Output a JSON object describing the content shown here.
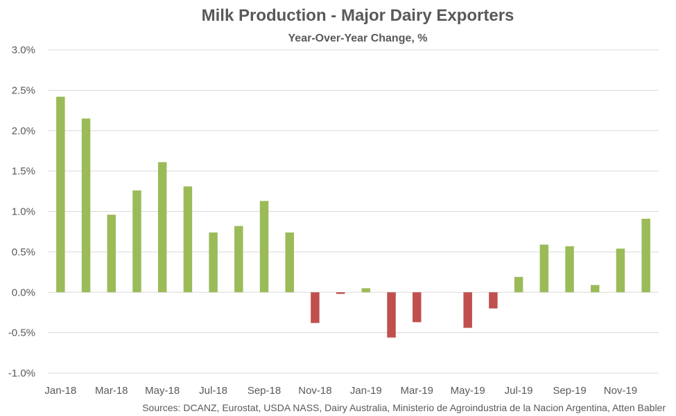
{
  "chart_data": {
    "type": "bar",
    "title": "Milk Production - Major Dairy Exporters",
    "subtitle": "Year-Over-Year Change, %",
    "source": "Sources: DCANZ, Eurostat, USDA NASS, Dairy Australia, Ministerio de Agroindustria de la Nacion Argentina, Atten Babler",
    "categories": [
      "Jan-18",
      "Feb-18",
      "Mar-18",
      "Apr-18",
      "May-18",
      "Jun-18",
      "Jul-18",
      "Aug-18",
      "Sep-18",
      "Oct-18",
      "Nov-18",
      "Dec-18",
      "Jan-19",
      "Feb-19",
      "Mar-19",
      "Apr-19",
      "May-19",
      "Jun-19",
      "Jul-19",
      "Aug-19",
      "Sep-19",
      "Oct-19",
      "Nov-19",
      "Dec-19"
    ],
    "x_tick_labels": [
      "Jan-18",
      "Mar-18",
      "May-18",
      "Jul-18",
      "Sep-18",
      "Nov-18",
      "Jan-19",
      "Mar-19",
      "May-19",
      "Jul-19",
      "Sep-19",
      "Nov-19"
    ],
    "values": [
      2.42,
      2.15,
      0.96,
      1.26,
      1.61,
      1.31,
      0.74,
      0.82,
      1.13,
      0.74,
      -0.38,
      -0.02,
      0.05,
      -0.56,
      -0.37,
      0.0,
      -0.44,
      -0.2,
      0.19,
      0.59,
      0.57,
      0.09,
      0.54,
      0.91
    ],
    "ylim": [
      -1.0,
      3.0
    ],
    "y_ticks": [
      "3.0%",
      "2.5%",
      "2.0%",
      "1.5%",
      "1.0%",
      "0.5%",
      "0.0%",
      "-0.5%",
      "-1.0%"
    ],
    "y_tick_values": [
      3.0,
      2.5,
      2.0,
      1.5,
      1.0,
      0.5,
      0.0,
      -0.5,
      -1.0
    ],
    "grid": true,
    "colors": {
      "positive": "#9BBB59",
      "negative": "#C0504D",
      "grid": "#D9D9D9",
      "text": "#595959"
    }
  }
}
